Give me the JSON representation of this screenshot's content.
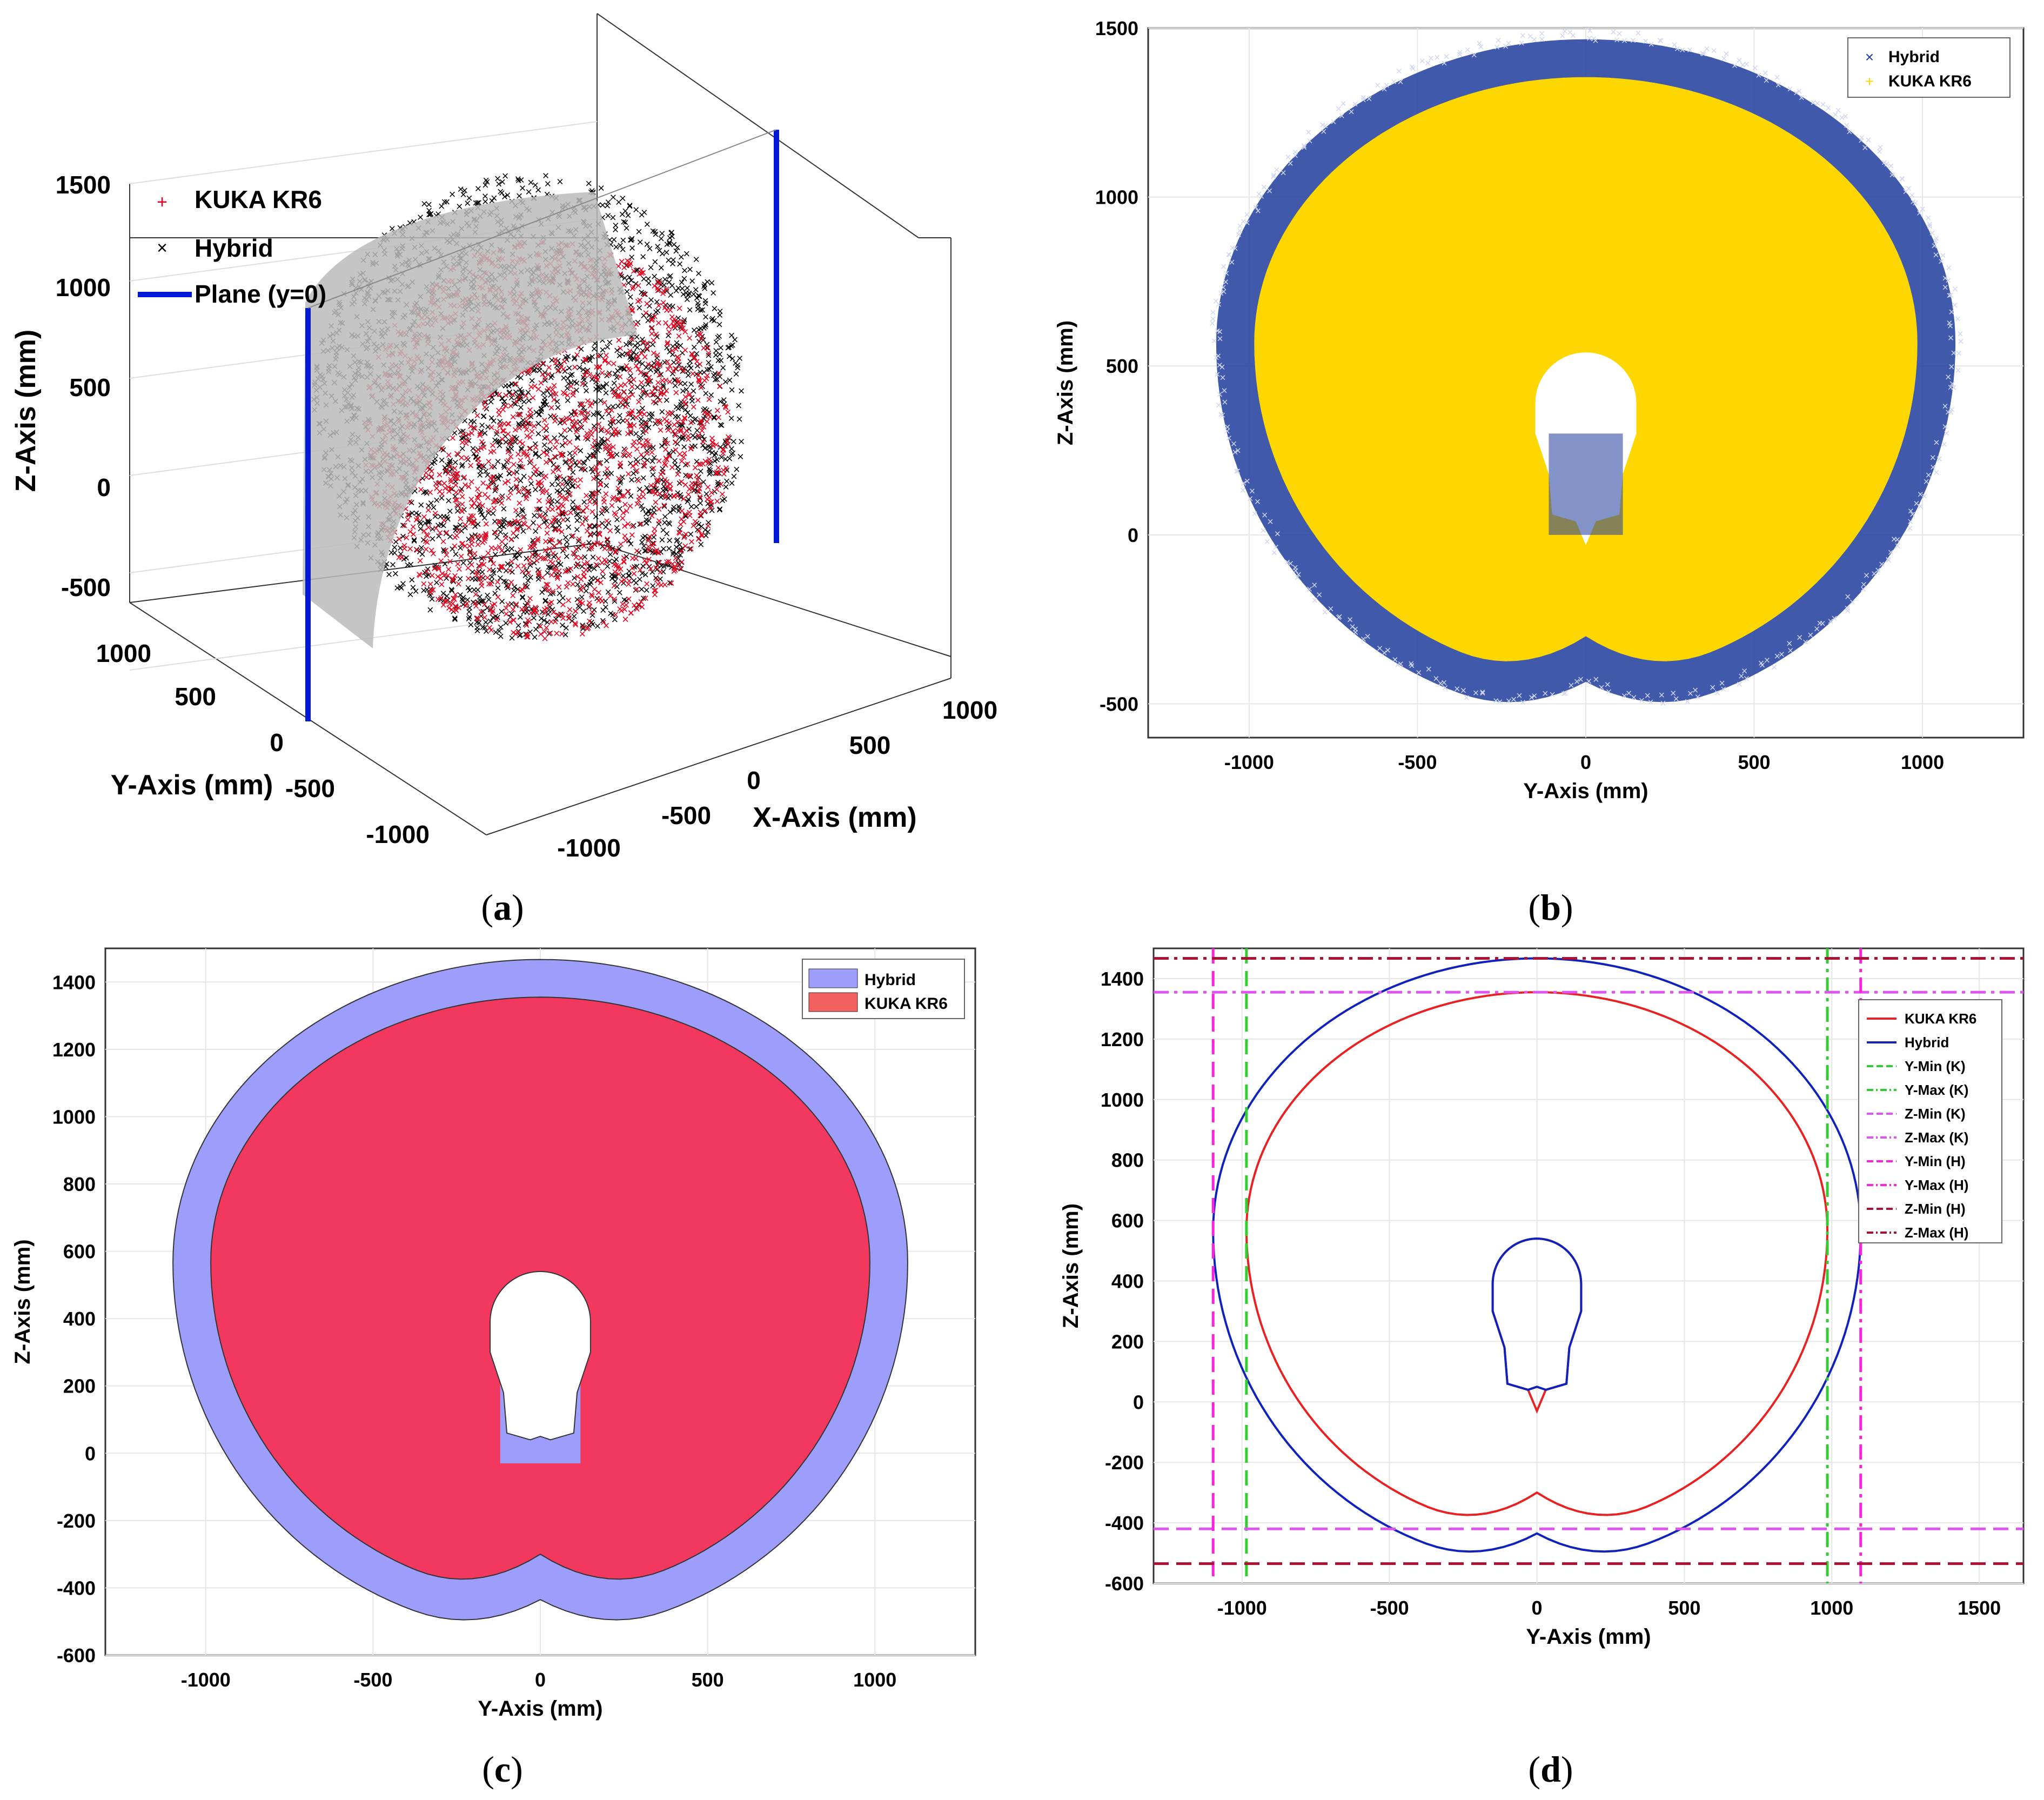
{
  "captions": {
    "a": "a",
    "b": "b",
    "c": "c",
    "d": "d"
  },
  "colors": {
    "kuka_red": "#e8001c",
    "hybrid_black": "#000000",
    "plane_blue": "#0019d6",
    "hybrid_navy": "#1f3c9c",
    "kuka_yellow": "#ffd700",
    "hybrid_fill": "#9d9dfb",
    "kuka_fill": "#f2385e",
    "kuka_line": "#e82222",
    "hybrid_line": "#1122bb",
    "green": "#33cc33",
    "magenta": "#ff22dd",
    "violet": "#dd55ee",
    "darkred": "#aa1133"
  },
  "chart_data": [
    {
      "id": "a",
      "type": "scatter",
      "title": "",
      "xlabel": "X-Axis (mm)",
      "ylabel": "Y-Axis (mm)",
      "zlabel": "Z-Axis (mm)",
      "xticks": [
        "-1000",
        "-500",
        "0",
        "500",
        "1000"
      ],
      "yticks": [
        "-1000",
        "-500",
        "0",
        "500",
        "1000"
      ],
      "zticks": [
        "-500",
        "0",
        "500",
        "1000",
        "1500"
      ],
      "legend": [
        {
          "label": "KUKA KR6",
          "marker": "+",
          "color": "#e8001c"
        },
        {
          "label": "Hybrid",
          "marker": "x",
          "color": "#000000"
        },
        {
          "label": "Plane (y=0)",
          "marker": "line",
          "color": "#0019d6"
        }
      ],
      "legend_position": "top-left"
    },
    {
      "id": "b",
      "type": "scatter",
      "title": "",
      "xlabel": "Y-Axis (mm)",
      "ylabel": "Z-Axis (mm)",
      "xlim": [
        -1300,
        1300
      ],
      "ylim": [
        -600,
        1500
      ],
      "xticks": [
        "-1000",
        "-500",
        "0",
        "500",
        "1000"
      ],
      "yticks": [
        "-500",
        "0",
        "500",
        "1000",
        "1500"
      ],
      "legend": [
        {
          "label": "Hybrid",
          "marker": "x",
          "color": "#1f3c9c"
        },
        {
          "label": "KUKA KR6",
          "marker": "+",
          "color": "#ffd700"
        }
      ],
      "legend_position": "top-right"
    },
    {
      "id": "c",
      "type": "area",
      "title": "",
      "xlabel": "Y-Axis (mm)",
      "ylabel": "Z-Axis (mm)",
      "xlim": [
        -1300,
        1300
      ],
      "ylim": [
        -600,
        1500
      ],
      "xticks": [
        "-1000",
        "-500",
        "0",
        "500",
        "1000"
      ],
      "yticks": [
        "-600",
        "-400",
        "-200",
        "0",
        "200",
        "400",
        "600",
        "800",
        "1000",
        "1200",
        "1400"
      ],
      "legend": [
        {
          "label": "Hybrid",
          "color": "#9d9dfb"
        },
        {
          "label": "KUKA KR6",
          "color": "#f26060"
        }
      ],
      "legend_position": "top-right",
      "series": [
        {
          "name": "Hybrid",
          "y_range": [
            -1098,
            1098
          ],
          "z_range": [
            -535,
            1467
          ]
        },
        {
          "name": "KUKA KR6",
          "y_range": [
            -985,
            985
          ],
          "z_range": [
            -420,
            1355
          ]
        }
      ]
    },
    {
      "id": "d",
      "type": "line",
      "title": "",
      "xlabel": "Y-Axis (mm)",
      "ylabel": "Z-Axis (mm)",
      "xlim": [
        -1300,
        1650
      ],
      "ylim": [
        -600,
        1500
      ],
      "xticks": [
        "-1000",
        "-500",
        "0",
        "500",
        "1000",
        "1500"
      ],
      "yticks": [
        "-600",
        "-400",
        "-200",
        "0",
        "200",
        "400",
        "600",
        "800",
        "1000",
        "1200",
        "1400"
      ],
      "legend": [
        {
          "label": "KUKA KR6",
          "style": "solid",
          "color": "#e82222"
        },
        {
          "label": "Hybrid",
          "style": "solid",
          "color": "#1122bb"
        },
        {
          "label": "Y-Min (K)",
          "style": "dashed",
          "color": "#33cc33",
          "value": -985
        },
        {
          "label": "Y-Max (K)",
          "style": "dashdot",
          "color": "#33cc33",
          "value": 985
        },
        {
          "label": "Z-Min (K)",
          "style": "dashed",
          "color": "#dd55ee",
          "value": -420
        },
        {
          "label": "Z-Max (K)",
          "style": "dashdot",
          "color": "#dd55ee",
          "value": 1355
        },
        {
          "label": "Y-Min (H)",
          "style": "dashed",
          "color": "#ff22dd",
          "value": -1098
        },
        {
          "label": "Y-Max (H)",
          "style": "dashdot",
          "color": "#ff22dd",
          "value": 1098
        },
        {
          "label": "Z-Min (H)",
          "style": "dashed",
          "color": "#aa1133",
          "value": -535
        },
        {
          "label": "Z-Max (H)",
          "style": "dashdot",
          "color": "#aa1133",
          "value": 1467
        }
      ],
      "legend_position": "right"
    }
  ]
}
